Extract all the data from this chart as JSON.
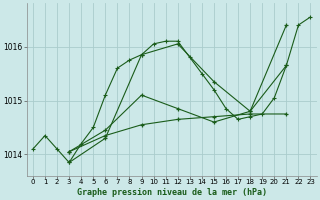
{
  "background_color": "#cce8e8",
  "grid_color": "#aacccc",
  "line_color": "#1a5c1a",
  "title": "Graphe pression niveau de la mer (hPa)",
  "xlim": [
    -0.5,
    23.5
  ],
  "ylim": [
    1013.6,
    1016.8
  ],
  "yticks": [
    1014,
    1015,
    1016
  ],
  "xticks": [
    0,
    1,
    2,
    3,
    4,
    5,
    6,
    7,
    8,
    9,
    10,
    11,
    12,
    13,
    14,
    15,
    16,
    17,
    18,
    19,
    20,
    21,
    22,
    23
  ],
  "series": [
    {
      "x": [
        0,
        1,
        2,
        3,
        4,
        5,
        6,
        7,
        8,
        9,
        10,
        11,
        12,
        13,
        14,
        15,
        16,
        17,
        18,
        19,
        20,
        21,
        22,
        23
      ],
      "y": [
        1014.1,
        1014.35,
        1014.1,
        1013.85,
        1014.2,
        1014.5,
        1015.1,
        1015.6,
        1015.75,
        1015.85,
        1016.05,
        1016.1,
        1016.1,
        1015.8,
        1015.5,
        1015.2,
        1014.85,
        1014.65,
        1014.7,
        1014.75,
        1015.05,
        1015.65,
        1016.4,
        1016.55
      ]
    },
    {
      "x": [
        3,
        6,
        9,
        12,
        15,
        18,
        21
      ],
      "y": [
        1013.85,
        1014.3,
        1015.85,
        1016.05,
        1015.35,
        1014.8,
        1016.4
      ]
    },
    {
      "x": [
        3,
        6,
        9,
        12,
        15,
        18,
        21
      ],
      "y": [
        1014.05,
        1014.45,
        1015.1,
        1014.85,
        1014.6,
        1014.8,
        1015.65
      ]
    },
    {
      "x": [
        3,
        6,
        9,
        12,
        15,
        18,
        21
      ],
      "y": [
        1014.05,
        1014.35,
        1014.55,
        1014.65,
        1014.7,
        1014.75,
        1014.75
      ]
    }
  ]
}
